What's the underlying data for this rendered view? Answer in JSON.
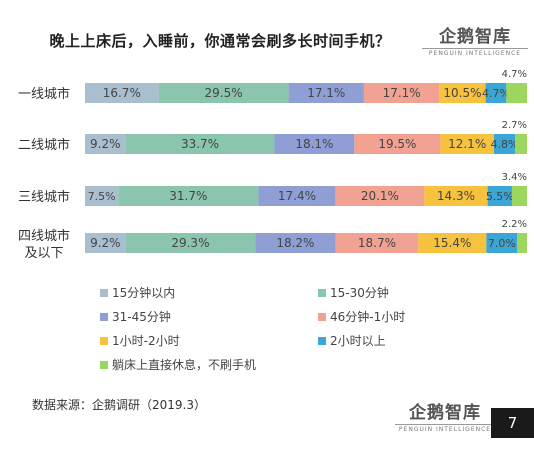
{
  "title": "晚上上床后，入睡前，你通常会刷多长时间手机？",
  "brand": {
    "name": "企鹅智库",
    "subtitle": "PENGUIN INTELLIGENCE"
  },
  "source": "数据来源：企鹅调研（2019.3）",
  "page_number": "7",
  "chart_data": {
    "type": "bar",
    "orientation": "horizontal",
    "stacked": true,
    "percent_stacked": true,
    "categories": [
      [
        "一线城市"
      ],
      [
        "二线城市"
      ],
      [
        "三线城市"
      ],
      [
        "四线城市",
        "及以下"
      ]
    ],
    "series": [
      {
        "name": "15分钟以内",
        "color": "#a9bfcf",
        "values": [
          16.7,
          9.2,
          7.5,
          9.2
        ]
      },
      {
        "name": "15-30分钟",
        "color": "#8cc5ad",
        "values": [
          29.5,
          33.7,
          31.7,
          29.3
        ]
      },
      {
        "name": "31-45分钟",
        "color": "#8f9fd6",
        "values": [
          17.1,
          18.1,
          17.4,
          18.2
        ]
      },
      {
        "name": "46分钟-1小时",
        "color": "#f2a292",
        "values": [
          17.1,
          19.5,
          20.1,
          18.7
        ]
      },
      {
        "name": "1小时-2小时",
        "color": "#f7c33e",
        "values": [
          10.5,
          12.1,
          14.3,
          15.4
        ]
      },
      {
        "name": "2小时以上",
        "color": "#3aa6d6",
        "values": [
          4.7,
          4.8,
          5.5,
          7.0
        ]
      },
      {
        "name": "躺床上直接休息，不刷手机",
        "color": "#9cd65e",
        "values": [
          4.7,
          2.7,
          3.4,
          2.2
        ]
      }
    ],
    "value_labels": [
      [
        "16.7%",
        "29.5%",
        "17.1%",
        "17.1%",
        "10.5%",
        "4.7%",
        "4.7%"
      ],
      [
        "9.2%",
        "33.7%",
        "18.1%",
        "19.5%",
        "12.1%",
        "4.8%",
        "2.7%"
      ],
      [
        "7.5%",
        "31.7%",
        "17.4%",
        "20.1%",
        "14.3%",
        "5.5%",
        "3.4%"
      ],
      [
        "9.2%",
        "29.3%",
        "18.2%",
        "18.7%",
        "15.4%",
        "7.0%",
        "2.2%"
      ]
    ],
    "legend_position": "bottom",
    "grid": false
  }
}
